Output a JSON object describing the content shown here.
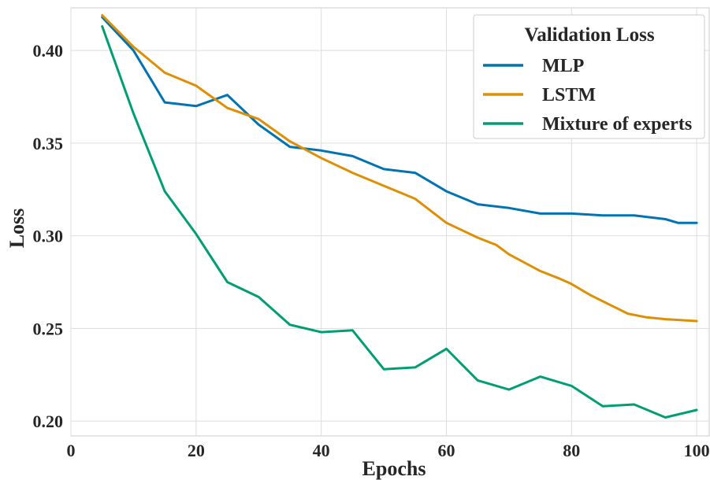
{
  "chart_data": {
    "type": "line",
    "title": "",
    "xlabel": "Epochs",
    "ylabel": "Loss",
    "xlim": [
      0,
      102
    ],
    "ylim": [
      0.192,
      0.423
    ],
    "xticks": [
      0,
      20,
      40,
      60,
      80,
      100
    ],
    "xtick_labels": [
      "0",
      "20",
      "40",
      "60",
      "80",
      "100"
    ],
    "yticks": [
      0.2,
      0.25,
      0.3,
      0.35,
      0.4
    ],
    "ytick_labels": [
      "0.20",
      "0.25",
      "0.30",
      "0.35",
      "0.40"
    ],
    "grid": true,
    "legend": {
      "title": "Validation Loss",
      "placement": "top-right"
    },
    "series": [
      {
        "name": "MLP",
        "color": "#0173b2",
        "x": [
          5,
          10,
          15,
          20,
          25,
          30,
          35,
          40,
          45,
          50,
          55,
          60,
          65,
          70,
          75,
          80,
          85,
          90,
          95,
          97,
          100
        ],
        "y": [
          0.418,
          0.4,
          0.372,
          0.37,
          0.376,
          0.36,
          0.348,
          0.346,
          0.343,
          0.336,
          0.334,
          0.324,
          0.317,
          0.315,
          0.312,
          0.312,
          0.311,
          0.311,
          0.309,
          0.307,
          0.307
        ]
      },
      {
        "name": "LSTM",
        "color": "#de8f05",
        "x": [
          5,
          10,
          15,
          20,
          25,
          30,
          35,
          40,
          45,
          50,
          55,
          60,
          65,
          68,
          70,
          75,
          78,
          80,
          83,
          86,
          89,
          92,
          95,
          100
        ],
        "y": [
          0.419,
          0.402,
          0.388,
          0.381,
          0.369,
          0.363,
          0.351,
          0.342,
          0.334,
          0.327,
          0.32,
          0.307,
          0.299,
          0.295,
          0.29,
          0.281,
          0.277,
          0.274,
          0.268,
          0.263,
          0.258,
          0.256,
          0.255,
          0.254
        ]
      },
      {
        "name": "Mixture of experts",
        "color": "#029e73",
        "x": [
          5,
          10,
          15,
          20,
          25,
          30,
          35,
          40,
          45,
          50,
          55,
          60,
          65,
          70,
          75,
          80,
          85,
          90,
          95,
          100
        ],
        "y": [
          0.413,
          0.366,
          0.324,
          0.301,
          0.275,
          0.267,
          0.252,
          0.248,
          0.249,
          0.228,
          0.229,
          0.239,
          0.222,
          0.217,
          0.224,
          0.219,
          0.208,
          0.209,
          0.202,
          0.206
        ]
      }
    ]
  }
}
